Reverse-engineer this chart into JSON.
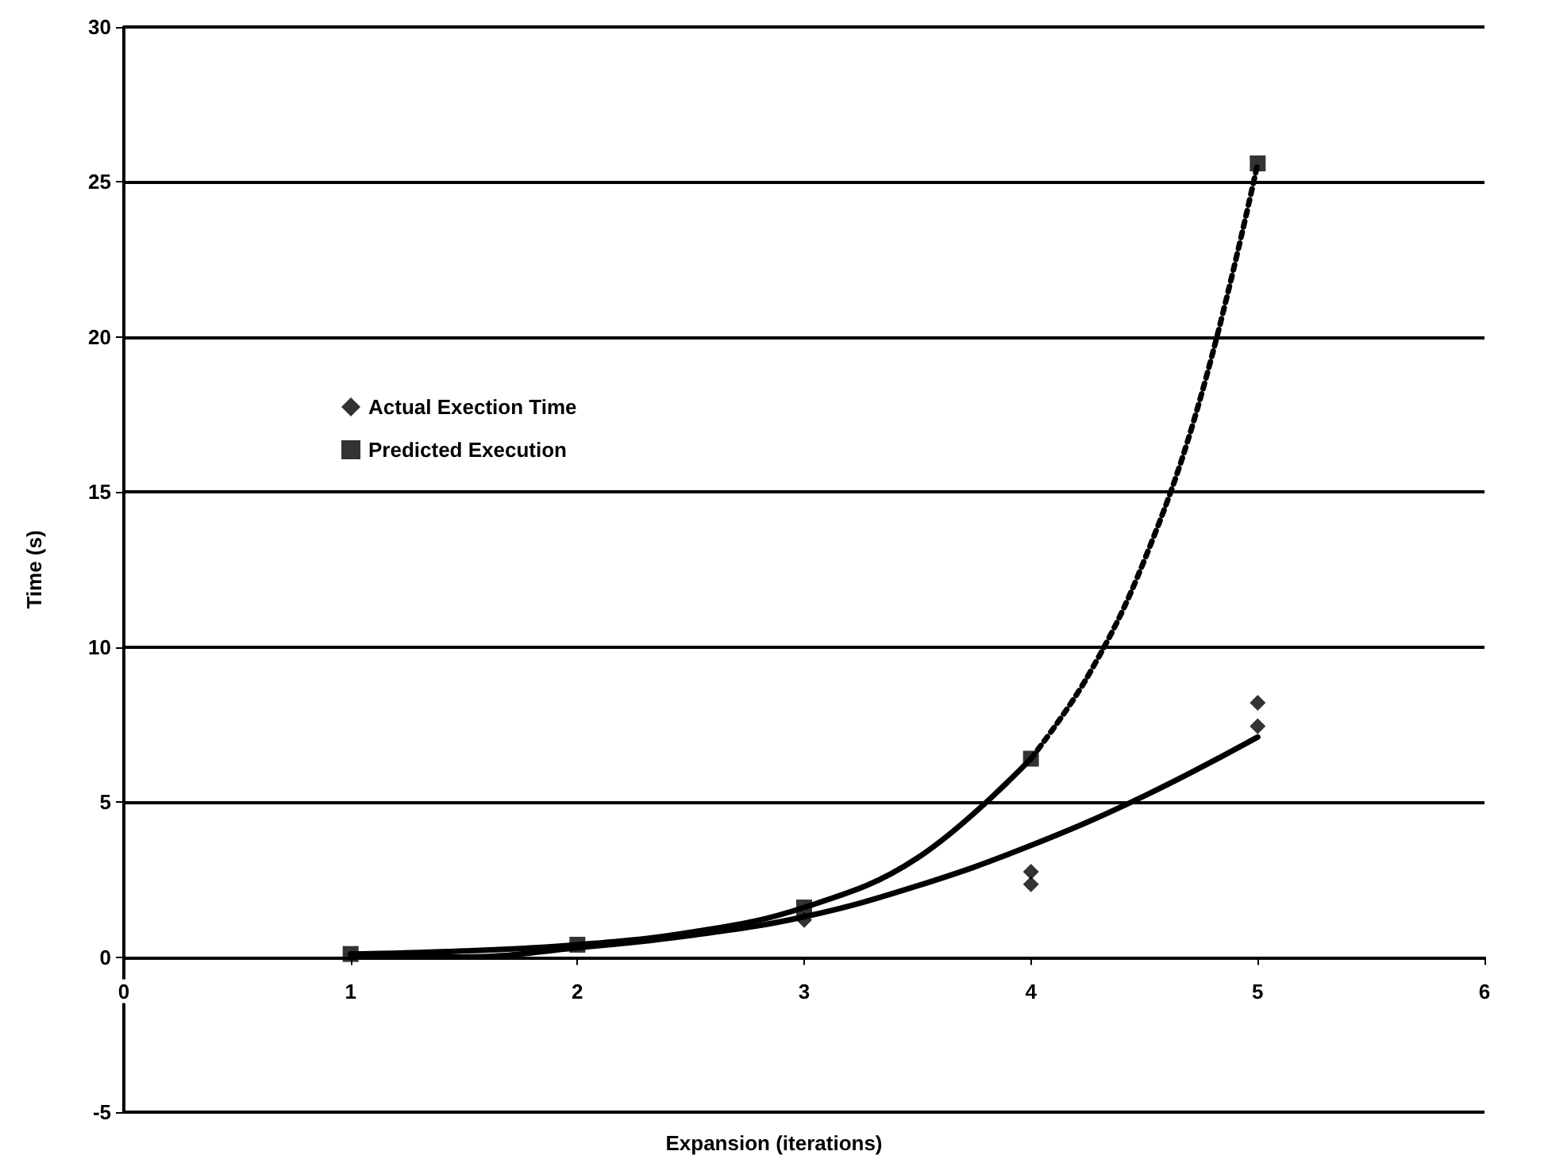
{
  "chart_data": {
    "type": "scatter",
    "xlabel": "Expansion (iterations)",
    "ylabel": "Time (s)",
    "xlim": [
      0,
      6
    ],
    "xticks": [
      0,
      1,
      2,
      3,
      4,
      5,
      6
    ],
    "ylim": [
      -5,
      30
    ],
    "yticks": [
      -5,
      0,
      5,
      10,
      15,
      20,
      25,
      30
    ],
    "grid": "y",
    "legend": "top left",
    "series": [
      {
        "name": "Actual Exection Time",
        "marker": "diamond",
        "color": "#000000",
        "x": [
          3,
          4,
          4,
          5,
          5
        ],
        "values": [
          1.2,
          2.75,
          2.35,
          8.2,
          7.45
        ]
      },
      {
        "name": "Predicted Execution",
        "marker": "square",
        "color": "#000000",
        "x": [
          1,
          2,
          3,
          4,
          5
        ],
        "values": [
          0.1,
          0.4,
          1.6,
          6.4,
          25.6
        ]
      },
      {
        "type": "line",
        "line_style": "solid",
        "color": "#000000",
        "x": [
          1,
          1.5,
          2,
          2.5,
          3,
          3.5,
          4,
          4.5,
          5
        ],
        "values": [
          0.1,
          0.0,
          0.3,
          0.7,
          1.3,
          2.3,
          3.6,
          5.2,
          7.1
        ]
      },
      {
        "type": "line",
        "line_style": "solid",
        "color": "#000000",
        "x": [
          1,
          1.5,
          2,
          2.5,
          3,
          3.5,
          4
        ],
        "values": [
          0.1,
          0.2,
          0.4,
          0.8,
          1.6,
          3.2,
          6.4
        ]
      },
      {
        "type": "line",
        "line_style": "dotted",
        "color": "#000000",
        "x": [
          4,
          4.25,
          4.5,
          4.75,
          5
        ],
        "values": [
          6.4,
          9.05,
          12.8,
          18.1,
          25.6
        ]
      }
    ]
  }
}
